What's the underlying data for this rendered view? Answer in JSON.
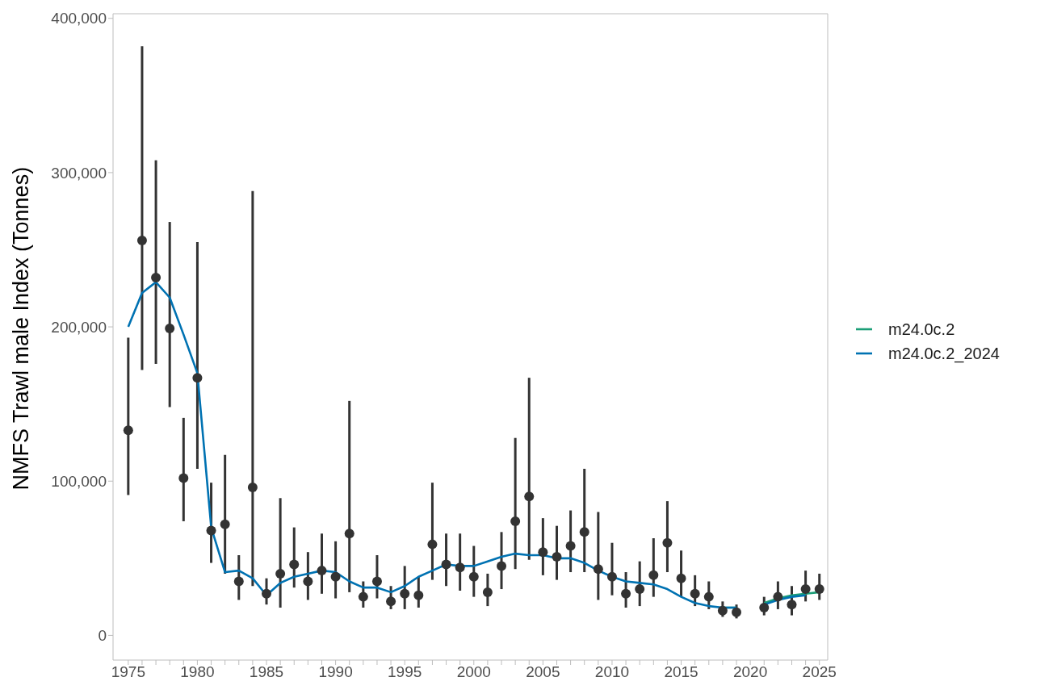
{
  "chart_data": {
    "type": "scatter",
    "ylabel": "NMFS Trawl male Index (Tonnes)",
    "x": [
      1975,
      1976,
      1977,
      1978,
      1979,
      1980,
      1981,
      1982,
      1983,
      1984,
      1985,
      1986,
      1987,
      1988,
      1989,
      1990,
      1991,
      1992,
      1993,
      1994,
      1995,
      1996,
      1997,
      1998,
      1999,
      2000,
      2001,
      2002,
      2003,
      2004,
      2005,
      2006,
      2007,
      2008,
      2009,
      2010,
      2011,
      2012,
      2013,
      2014,
      2015,
      2016,
      2017,
      2018,
      2019,
      2020,
      2021,
      2022,
      2023,
      2024,
      2025
    ],
    "series": [
      {
        "color": "#333333",
        "marker": "circle",
        "values": [
          133000,
          256000,
          232000,
          199000,
          102000,
          167000,
          68000,
          72000,
          35000,
          96000,
          27000,
          40000,
          46000,
          35000,
          42000,
          38000,
          66000,
          25000,
          35000,
          22000,
          27000,
          26000,
          59000,
          46000,
          44000,
          38000,
          28000,
          45000,
          74000,
          90000,
          54000,
          51000,
          58000,
          67000,
          43000,
          38000,
          27000,
          30000,
          39000,
          60000,
          37000,
          27000,
          25000,
          16000,
          15000,
          null,
          18000,
          25000,
          20000,
          30000,
          30000
        ],
        "errors": [
          [
            91000,
            193000
          ],
          [
            172000,
            382000
          ],
          [
            176000,
            308000
          ],
          [
            148000,
            268000
          ],
          [
            74000,
            141000
          ],
          [
            108000,
            255000
          ],
          [
            47000,
            99000
          ],
          [
            40000,
            117000
          ],
          [
            23000,
            52000
          ],
          [
            32000,
            288000
          ],
          [
            20000,
            37000
          ],
          [
            18000,
            89000
          ],
          [
            31000,
            70000
          ],
          [
            23000,
            54000
          ],
          [
            27000,
            66000
          ],
          [
            24000,
            61000
          ],
          [
            28000,
            152000
          ],
          [
            18000,
            35000
          ],
          [
            24000,
            52000
          ],
          [
            17000,
            32000
          ],
          [
            17000,
            45000
          ],
          [
            18000,
            38000
          ],
          [
            36000,
            99000
          ],
          [
            32000,
            66000
          ],
          [
            29000,
            66000
          ],
          [
            25000,
            58000
          ],
          [
            19000,
            40000
          ],
          [
            30000,
            67000
          ],
          [
            43000,
            128000
          ],
          [
            49000,
            167000
          ],
          [
            39000,
            76000
          ],
          [
            36000,
            71000
          ],
          [
            41000,
            81000
          ],
          [
            41000,
            108000
          ],
          [
            23000,
            80000
          ],
          [
            26000,
            60000
          ],
          [
            18000,
            41000
          ],
          [
            19000,
            48000
          ],
          [
            25000,
            63000
          ],
          [
            41000,
            87000
          ],
          [
            25000,
            55000
          ],
          [
            19000,
            39000
          ],
          [
            17000,
            35000
          ],
          [
            12000,
            22000
          ],
          [
            11000,
            20000
          ],
          null,
          [
            13000,
            25000
          ],
          [
            17000,
            35000
          ],
          [
            13000,
            32000
          ],
          [
            22000,
            42000
          ],
          [
            23000,
            40000
          ]
        ]
      },
      {
        "type": "line",
        "name": "m24.0c.2",
        "color": "#1b9e77",
        "values": [
          null,
          null,
          null,
          null,
          null,
          null,
          null,
          null,
          null,
          null,
          null,
          null,
          null,
          null,
          null,
          null,
          null,
          null,
          null,
          null,
          null,
          null,
          null,
          null,
          null,
          null,
          null,
          null,
          null,
          null,
          null,
          null,
          null,
          null,
          null,
          null,
          null,
          null,
          null,
          null,
          null,
          null,
          null,
          18000,
          18000,
          null,
          21000,
          24000,
          26000,
          27000,
          28000
        ]
      },
      {
        "type": "line",
        "name": "m24.0c.2_2024",
        "color": "#0072b2",
        "values": [
          200000,
          222000,
          229000,
          219000,
          195000,
          170000,
          70000,
          41000,
          42000,
          37000,
          26000,
          34000,
          38000,
          40000,
          42000,
          41000,
          35000,
          31000,
          31000,
          28000,
          32000,
          38000,
          42000,
          46000,
          45000,
          45000,
          48000,
          51000,
          53000,
          52000,
          52000,
          50000,
          50000,
          47000,
          42000,
          38000,
          35000,
          34000,
          33000,
          30000,
          25000,
          21000,
          19000,
          18000,
          18000,
          null,
          20000,
          23000,
          25000,
          26000,
          null
        ]
      }
    ],
    "xlim": [
      1973.9,
      2025.6
    ],
    "xticks": [
      1975,
      {
        "value": 1976,
        "label": null
      },
      {
        "value": 1977,
        "label": null
      },
      {
        "value": 1978,
        "label": null
      },
      {
        "value": 1979,
        "label": null
      },
      1980,
      {
        "value": 1981,
        "label": null
      },
      {
        "value": 1982,
        "label": null
      },
      {
        "value": 1983,
        "label": null
      },
      {
        "value": 1984,
        "label": null
      },
      1985,
      {
        "value": 1986,
        "label": null
      },
      {
        "value": 1987,
        "label": null
      },
      {
        "value": 1988,
        "label": null
      },
      {
        "value": 1989,
        "label": null
      },
      1990,
      {
        "value": 1991,
        "label": null
      },
      {
        "value": 1992,
        "label": null
      },
      {
        "value": 1993,
        "label": null
      },
      {
        "value": 1994,
        "label": null
      },
      1995,
      {
        "value": 1996,
        "label": null
      },
      {
        "value": 1997,
        "label": null
      },
      {
        "value": 1998,
        "label": null
      },
      {
        "value": 1999,
        "label": null
      },
      2000,
      {
        "value": 2001,
        "label": null
      },
      {
        "value": 2002,
        "label": null
      },
      {
        "value": 2003,
        "label": null
      },
      {
        "value": 2004,
        "label": null
      },
      2005,
      {
        "value": 2006,
        "label": null
      },
      {
        "value": 2007,
        "label": null
      },
      {
        "value": 2008,
        "label": null
      },
      {
        "value": 2009,
        "label": null
      },
      2010,
      {
        "value": 2011,
        "label": null
      },
      {
        "value": 2012,
        "label": null
      },
      {
        "value": 2013,
        "label": null
      },
      {
        "value": 2014,
        "label": null
      },
      2015,
      {
        "value": 2016,
        "label": null
      },
      {
        "value": 2017,
        "label": null
      },
      {
        "value": 2018,
        "label": null
      },
      {
        "value": 2019,
        "label": null
      },
      2020,
      {
        "value": 2021,
        "label": null
      },
      {
        "value": 2022,
        "label": null
      },
      {
        "value": 2023,
        "label": null
      },
      {
        "value": 2024,
        "label": null
      },
      2025
    ],
    "ylim": [
      -16000,
      403000
    ],
    "yticks": [
      0,
      {
        "value": 100000,
        "label": "100,000"
      },
      {
        "value": 200000,
        "label": "200,000"
      },
      {
        "value": 300000,
        "label": "300,000"
      },
      {
        "value": 400000,
        "label": "400,000"
      }
    ],
    "legend": "right"
  }
}
